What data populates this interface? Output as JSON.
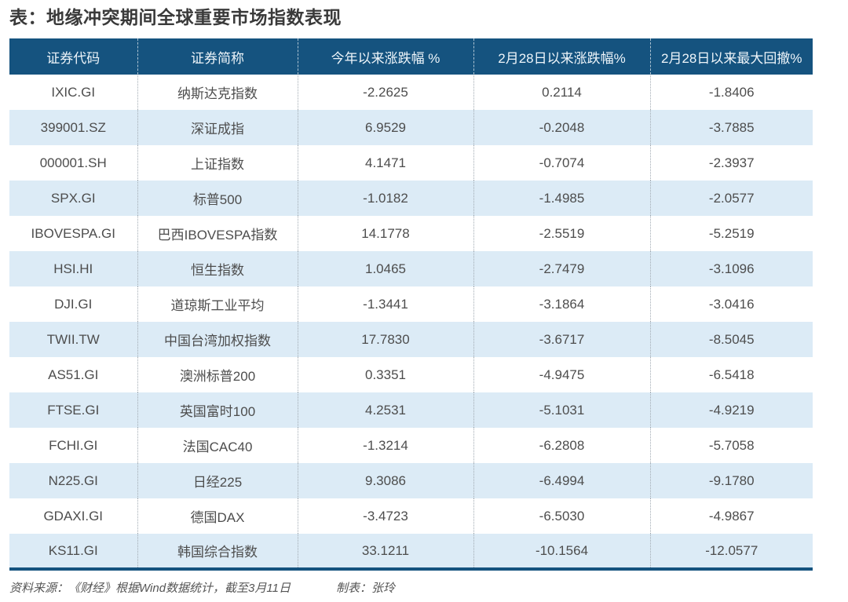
{
  "title": "表：地缘冲突期间全球重要市场指数表现",
  "colors": {
    "header_bg": "#15537F",
    "row_alt_bg": "#DCEBF6",
    "accent_border": "#15537F"
  },
  "table": {
    "headers": [
      "证券代码",
      "证券简称",
      "今年以来涨跌幅 %",
      "2月28日以来涨跌幅%",
      "2月28日以来最大回撤%"
    ],
    "rows": [
      [
        "IXIC.GI",
        "纳斯达克指数",
        "-2.2625",
        "0.2114",
        "-1.8406"
      ],
      [
        "399001.SZ",
        "深证成指",
        "6.9529",
        "-0.2048",
        "-3.7885"
      ],
      [
        "000001.SH",
        "上证指数",
        "4.1471",
        "-0.7074",
        "-2.3937"
      ],
      [
        "SPX.GI",
        "标普500",
        "-1.0182",
        "-1.4985",
        "-2.0577"
      ],
      [
        "IBOVESPA.GI",
        "巴西IBOVESPA指数",
        "14.1778",
        "-2.5519",
        "-5.2519"
      ],
      [
        "HSI.HI",
        "恒生指数",
        "1.0465",
        "-2.7479",
        "-3.1096"
      ],
      [
        "DJI.GI",
        "道琼斯工业平均",
        "-1.3441",
        "-3.1864",
        "-3.0416"
      ],
      [
        "TWII.TW",
        "中国台湾加权指数",
        "17.7830",
        "-3.6717",
        "-8.5045"
      ],
      [
        "AS51.GI",
        "澳洲标普200",
        "0.3351",
        "-4.9475",
        "-6.5418"
      ],
      [
        "FTSE.GI",
        "英国富时100",
        "4.2531",
        "-5.1031",
        "-4.9219"
      ],
      [
        "FCHI.GI",
        "法国CAC40",
        "-1.3214",
        "-6.2808",
        "-5.7058"
      ],
      [
        "N225.GI",
        "日经225",
        "9.3086",
        "-6.4994",
        "-9.1780"
      ],
      [
        "GDAXI.GI",
        "德国DAX",
        "-3.4723",
        "-6.5030",
        "-4.9867"
      ],
      [
        "KS11.GI",
        "韩国综合指数",
        "33.1211",
        "-10.1564",
        "-12.0577"
      ]
    ]
  },
  "footer": {
    "source": "资料来源：《财经》根据Wind数据统计，截至3月11日",
    "author": "制表：张玲"
  },
  "chart_data": {
    "type": "table",
    "title": "表：地缘冲突期间全球重要市场指数表现",
    "columns": [
      "证券代码",
      "证券简称",
      "今年以来涨跌幅 %",
      "2月28日以来涨跌幅%",
      "2月28日以来最大回撤%"
    ],
    "rows": [
      {
        "code": "IXIC.GI",
        "name": "纳斯达克指数",
        "ytd_change_pct": -2.2625,
        "since_feb28_change_pct": 0.2114,
        "since_feb28_max_drawdown_pct": -1.8406
      },
      {
        "code": "399001.SZ",
        "name": "深证成指",
        "ytd_change_pct": 6.9529,
        "since_feb28_change_pct": -0.2048,
        "since_feb28_max_drawdown_pct": -3.7885
      },
      {
        "code": "000001.SH",
        "name": "上证指数",
        "ytd_change_pct": 4.1471,
        "since_feb28_change_pct": -0.7074,
        "since_feb28_max_drawdown_pct": -2.3937
      },
      {
        "code": "SPX.GI",
        "name": "标普500",
        "ytd_change_pct": -1.0182,
        "since_feb28_change_pct": -1.4985,
        "since_feb28_max_drawdown_pct": -2.0577
      },
      {
        "code": "IBOVESPA.GI",
        "name": "巴西IBOVESPA指数",
        "ytd_change_pct": 14.1778,
        "since_feb28_change_pct": -2.5519,
        "since_feb28_max_drawdown_pct": -5.2519
      },
      {
        "code": "HSI.HI",
        "name": "恒生指数",
        "ytd_change_pct": 1.0465,
        "since_feb28_change_pct": -2.7479,
        "since_feb28_max_drawdown_pct": -3.1096
      },
      {
        "code": "DJI.GI",
        "name": "道琼斯工业平均",
        "ytd_change_pct": -1.3441,
        "since_feb28_change_pct": -3.1864,
        "since_feb28_max_drawdown_pct": -3.0416
      },
      {
        "code": "TWII.TW",
        "name": "中国台湾加权指数",
        "ytd_change_pct": 17.783,
        "since_feb28_change_pct": -3.6717,
        "since_feb28_max_drawdown_pct": -8.5045
      },
      {
        "code": "AS51.GI",
        "name": "澳洲标普200",
        "ytd_change_pct": 0.3351,
        "since_feb28_change_pct": -4.9475,
        "since_feb28_max_drawdown_pct": -6.5418
      },
      {
        "code": "FTSE.GI",
        "name": "英国富时100",
        "ytd_change_pct": 4.2531,
        "since_feb28_change_pct": -5.1031,
        "since_feb28_max_drawdown_pct": -4.9219
      },
      {
        "code": "FCHI.GI",
        "name": "法国CAC40",
        "ytd_change_pct": -1.3214,
        "since_feb28_change_pct": -6.2808,
        "since_feb28_max_drawdown_pct": -5.7058
      },
      {
        "code": "N225.GI",
        "name": "日经225",
        "ytd_change_pct": 9.3086,
        "since_feb28_change_pct": -6.4994,
        "since_feb28_max_drawdown_pct": -9.178
      },
      {
        "code": "GDAXI.GI",
        "name": "德国DAX",
        "ytd_change_pct": -3.4723,
        "since_feb28_change_pct": -6.503,
        "since_feb28_max_drawdown_pct": -4.9867
      },
      {
        "code": "KS11.GI",
        "name": "韩国综合指数",
        "ytd_change_pct": 33.1211,
        "since_feb28_change_pct": -10.1564,
        "since_feb28_max_drawdown_pct": -12.0577
      }
    ],
    "notes": {
      "source": "资料来源：《财经》根据Wind数据统计，截至3月11日",
      "author": "制表：张玲"
    }
  }
}
